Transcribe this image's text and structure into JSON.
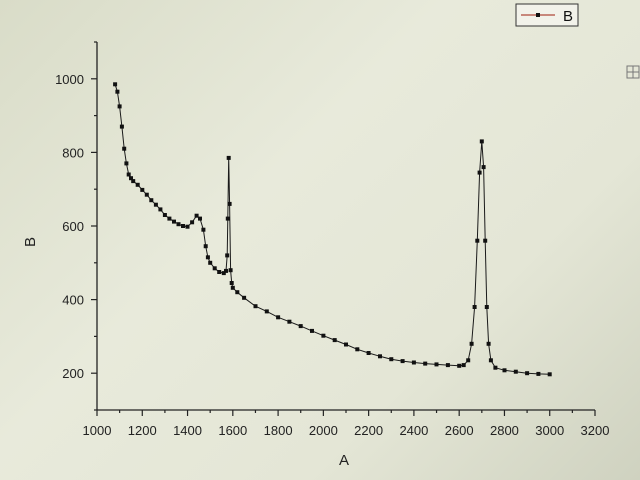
{
  "chart_data": {
    "type": "scatter",
    "title": "",
    "xlabel": "A",
    "ylabel": "B",
    "xlim": [
      1000,
      3200
    ],
    "ylim": [
      100,
      1100
    ],
    "x_ticks": [
      1000,
      1200,
      1400,
      1600,
      1800,
      2000,
      2200,
      2400,
      2600,
      2800,
      3000,
      3200
    ],
    "y_ticks": [
      200,
      400,
      600,
      800,
      1000
    ],
    "legend": {
      "entries": [
        "B"
      ],
      "placement": "top-right"
    },
    "grid": false,
    "series": [
      {
        "name": "B",
        "color": "#111111",
        "marker": "square",
        "connected": true,
        "points": [
          [
            1080,
            985
          ],
          [
            1090,
            965
          ],
          [
            1100,
            925
          ],
          [
            1110,
            870
          ],
          [
            1120,
            810
          ],
          [
            1130,
            770
          ],
          [
            1140,
            740
          ],
          [
            1150,
            730
          ],
          [
            1160,
            722
          ],
          [
            1180,
            712
          ],
          [
            1200,
            698
          ],
          [
            1220,
            685
          ],
          [
            1240,
            670
          ],
          [
            1260,
            658
          ],
          [
            1280,
            645
          ],
          [
            1300,
            630
          ],
          [
            1320,
            620
          ],
          [
            1340,
            612
          ],
          [
            1360,
            605
          ],
          [
            1380,
            600
          ],
          [
            1400,
            598
          ],
          [
            1420,
            610
          ],
          [
            1440,
            628
          ],
          [
            1455,
            620
          ],
          [
            1470,
            590
          ],
          [
            1480,
            545
          ],
          [
            1490,
            515
          ],
          [
            1500,
            500
          ],
          [
            1520,
            485
          ],
          [
            1540,
            475
          ],
          [
            1560,
            472
          ],
          [
            1570,
            478
          ],
          [
            1575,
            520
          ],
          [
            1578,
            620
          ],
          [
            1582,
            785
          ],
          [
            1586,
            660
          ],
          [
            1590,
            480
          ],
          [
            1595,
            445
          ],
          [
            1600,
            432
          ],
          [
            1620,
            420
          ],
          [
            1650,
            405
          ],
          [
            1700,
            382
          ],
          [
            1750,
            368
          ],
          [
            1800,
            352
          ],
          [
            1850,
            340
          ],
          [
            1900,
            328
          ],
          [
            1950,
            315
          ],
          [
            2000,
            302
          ],
          [
            2050,
            290
          ],
          [
            2100,
            278
          ],
          [
            2150,
            265
          ],
          [
            2200,
            255
          ],
          [
            2250,
            246
          ],
          [
            2300,
            238
          ],
          [
            2350,
            233
          ],
          [
            2400,
            229
          ],
          [
            2450,
            226
          ],
          [
            2500,
            224
          ],
          [
            2550,
            222
          ],
          [
            2600,
            220
          ],
          [
            2620,
            222
          ],
          [
            2640,
            235
          ],
          [
            2655,
            280
          ],
          [
            2668,
            380
          ],
          [
            2680,
            560
          ],
          [
            2690,
            745
          ],
          [
            2700,
            830
          ],
          [
            2708,
            760
          ],
          [
            2715,
            560
          ],
          [
            2722,
            380
          ],
          [
            2730,
            280
          ],
          [
            2740,
            235
          ],
          [
            2760,
            215
          ],
          [
            2800,
            208
          ],
          [
            2850,
            204
          ],
          [
            2900,
            200
          ],
          [
            2950,
            198
          ],
          [
            3000,
            197
          ]
        ]
      }
    ]
  },
  "legend_icon": "line-with-square-marker-icon",
  "corner_icon": "frame-resize-icon"
}
